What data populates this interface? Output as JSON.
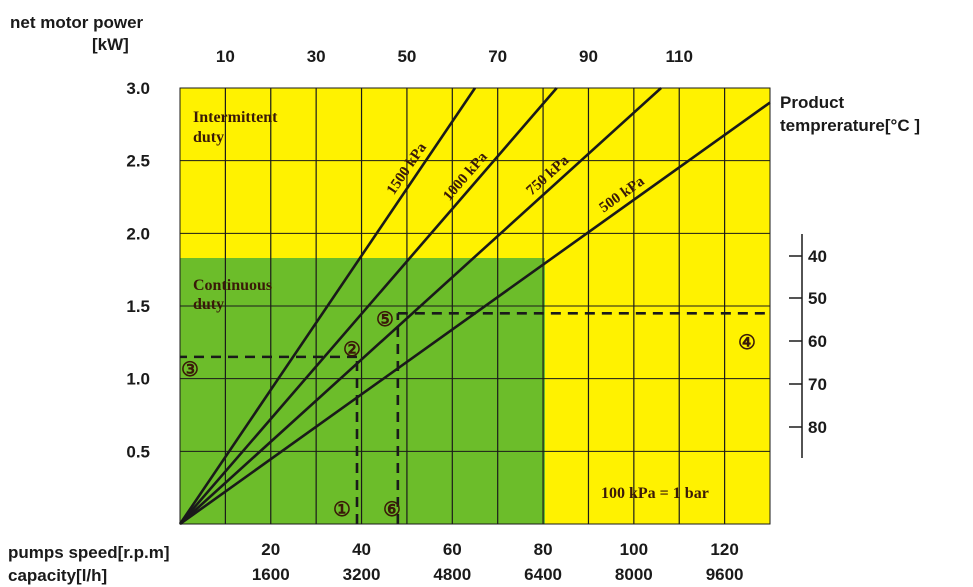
{
  "chart_data": {
    "type": "line",
    "left_axis": {
      "title_line1": "net motor power",
      "title_line2": "[kW]",
      "ylim": [
        0,
        3.0
      ],
      "ticks": [
        "3.0",
        "2.5",
        "2.0",
        "1.5",
        "1.0",
        "0.5"
      ]
    },
    "top_axis": {
      "ticks": [
        "10",
        "30",
        "50",
        "70",
        "90",
        "110"
      ]
    },
    "right_axis": {
      "title_line1": "Product",
      "title_line2": "temprerature[°C ]",
      "ticks": [
        "40",
        "50",
        "60",
        "70",
        "80"
      ]
    },
    "bottom_axis": {
      "speed_label": "pumps speed[r.p.m]",
      "capacity_label": "capacity[l/h]",
      "xlim": [
        0,
        130
      ],
      "speed_ticks": [
        "20",
        "40",
        "60",
        "80",
        "100",
        "120"
      ],
      "capacity_ticks": [
        "1600",
        "3200",
        "4800",
        "6400",
        "8000",
        "9600"
      ]
    },
    "regions": {
      "intermittent": [
        "Intermittent",
        "duty"
      ],
      "continuous": [
        "Continuous",
        "duty"
      ]
    },
    "conversion_note": "100 kPa = 1 bar",
    "series": [
      {
        "name": "1500 kPa",
        "x": [
          0,
          65
        ],
        "y": [
          0,
          3.0
        ]
      },
      {
        "name": "1000 kPa",
        "x": [
          0,
          83
        ],
        "y": [
          0,
          3.0
        ]
      },
      {
        "name": "750 kPa",
        "x": [
          0,
          106
        ],
        "y": [
          0,
          3.0
        ]
      },
      {
        "name": "500 kPa",
        "x": [
          0,
          130
        ],
        "y": [
          0,
          2.9
        ]
      }
    ],
    "markers": [
      "①",
      "②",
      "③",
      "④",
      "⑤",
      "⑥"
    ],
    "example_paths": [
      {
        "from": "①",
        "to": "②",
        "x": 39,
        "y": 1.15,
        "to_axis": "left"
      },
      {
        "from": "⑥",
        "to": "⑤",
        "x": 48,
        "y": 1.45,
        "to_axis": "right"
      }
    ],
    "colors": {
      "intermittent_zone": "#fff200",
      "continuous_zone": "#6cbd2a",
      "lines": "#1a1a1a"
    }
  }
}
